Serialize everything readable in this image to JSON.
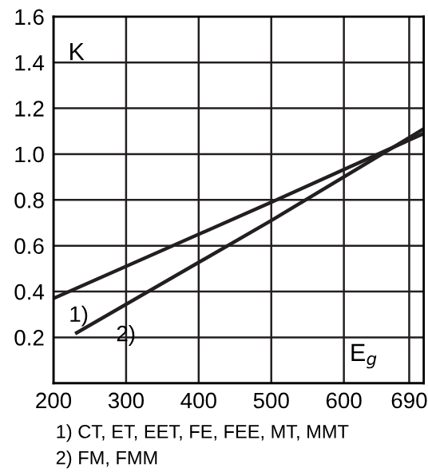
{
  "chart_data": {
    "type": "line",
    "xlabel": "E$_{g}$",
    "ylabel": "K",
    "series": [
      {
        "color": "#231f20",
        "x": [
          200,
          500,
          710
        ],
        "values": [
          0.37,
          0.79,
          1.09
        ]
      },
      {
        "color": "#231f20",
        "x": [
          232,
          500,
          710
        ],
        "values": [
          0.22,
          0.71,
          1.11
        ]
      }
    ],
    "xlim": [
      200,
      710
    ],
    "ylim": [
      0,
      1.6
    ],
    "xticks": [
      200,
      300,
      400,
      500,
      600,
      690
    ],
    "yticks": [
      {
        "value": 0,
        "label": null
      },
      0.2,
      0.4,
      0.6,
      0.8,
      {
        "value": 1.0,
        "label": "1.0"
      },
      1.2,
      1.4,
      1.6
    ],
    "grid": true,
    "line_style": "solid",
    "marker": "none",
    "annotations": [
      {
        "text": "1)",
        "x": 212,
        "y": 0.387
      },
      {
        "text": "2)",
        "x": 277,
        "y": 0.302
      },
      "1) CT, ET, EET, FE, FEE, MT, MMT",
      "2) FM, FMM"
    ]
  }
}
